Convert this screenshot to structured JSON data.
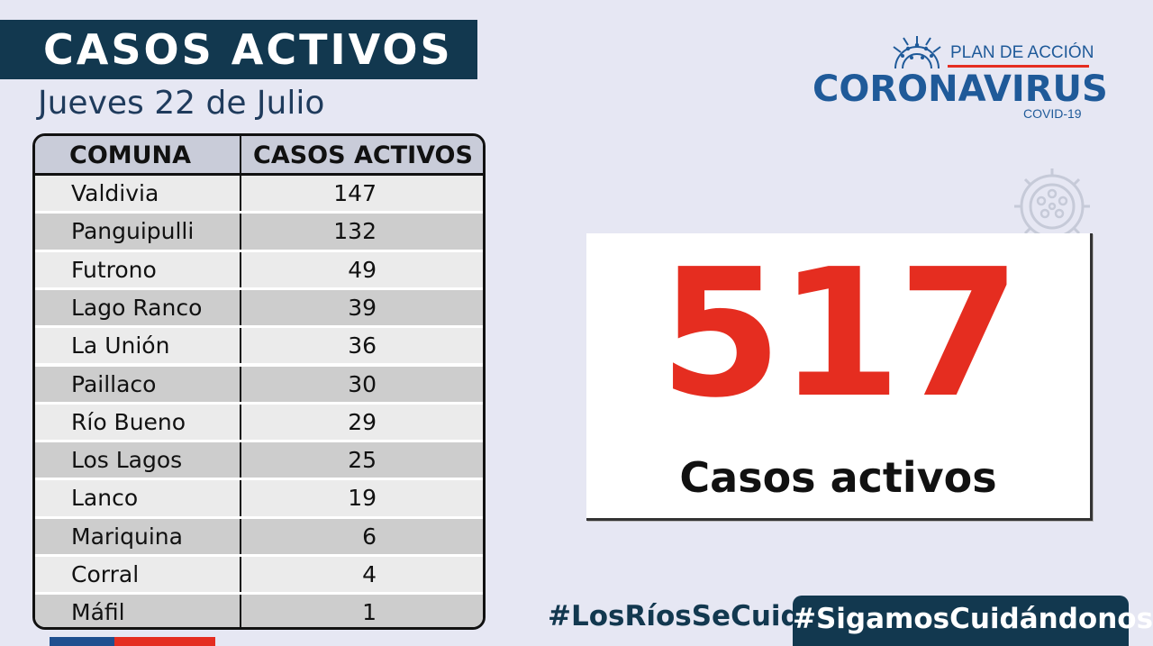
{
  "header": {
    "title": "CASOS ACTIVOS",
    "date": "Jueves 22 de Julio"
  },
  "logo": {
    "plan": "PLAN DE ACCIÓN",
    "main": "CORONAVIRUS",
    "sub": "COVID-19"
  },
  "table": {
    "headers": [
      "COMUNA",
      "CASOS ACTIVOS"
    ],
    "rows": [
      {
        "comuna": "Valdivia",
        "casos": "147"
      },
      {
        "comuna": "Panguipulli",
        "casos": "132"
      },
      {
        "comuna": "Futrono",
        "casos": "49"
      },
      {
        "comuna": "Lago Ranco",
        "casos": "39"
      },
      {
        "comuna": "La Unión",
        "casos": "36"
      },
      {
        "comuna": "Paillaco",
        "casos": "30"
      },
      {
        "comuna": "Río Bueno",
        "casos": "29"
      },
      {
        "comuna": "Los Lagos",
        "casos": "25"
      },
      {
        "comuna": "Lanco",
        "casos": "19"
      },
      {
        "comuna": "Mariquina",
        "casos": "6"
      },
      {
        "comuna": "Corral",
        "casos": "4"
      },
      {
        "comuna": "Máfil",
        "casos": "1"
      }
    ]
  },
  "total": {
    "value": "517",
    "label": "Casos activos"
  },
  "footer": {
    "hashtag1": "#LosRíosSeCuida",
    "hashtag2": "#SigamosCuidándonos"
  },
  "icons": {
    "virus": "virus-icon"
  },
  "colors": {
    "navy": "#12384f",
    "blue": "#1f5a99",
    "red": "#e52d20",
    "background": "#e6e7f3"
  }
}
